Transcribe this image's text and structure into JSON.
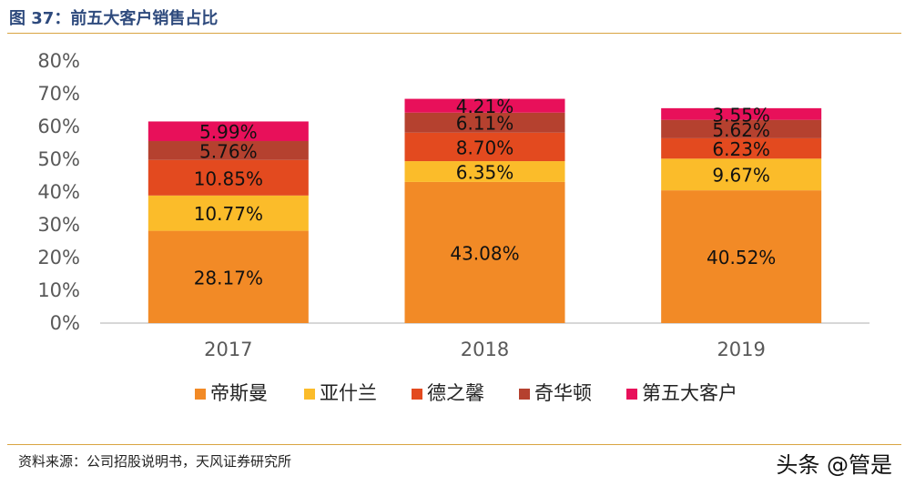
{
  "title": "图 37：前五大客户销售占比",
  "source": "资料来源：公司招股说明书，天风证券研究所",
  "watermark": "头条 @管是",
  "chart_data": {
    "type": "bar",
    "stacked": true,
    "categories": [
      "2017",
      "2018",
      "2019"
    ],
    "ylim": [
      0,
      80
    ],
    "yticks": [
      "0%",
      "10%",
      "20%",
      "30%",
      "40%",
      "50%",
      "60%",
      "70%",
      "80%"
    ],
    "grid": false,
    "legend_position": "bottom",
    "series": [
      {
        "name": "帝斯曼",
        "color": "#f28a26",
        "values": [
          28.17,
          43.08,
          40.52
        ],
        "labels": [
          "28.17%",
          "43.08%",
          "40.52%"
        ]
      },
      {
        "name": "亚什兰",
        "color": "#fbbc2a",
        "values": [
          10.77,
          6.35,
          9.67
        ],
        "labels": [
          "10.77%",
          "6.35%",
          "9.67%"
        ]
      },
      {
        "name": "德之馨",
        "color": "#e34a1f",
        "values": [
          10.85,
          8.7,
          6.23
        ],
        "labels": [
          "10.85%",
          "8.70%",
          "6.23%"
        ]
      },
      {
        "name": "奇华顿",
        "color": "#b5412f",
        "values": [
          5.76,
          6.11,
          5.62
        ],
        "labels": [
          "5.76%",
          "6.11%",
          "5.62%"
        ]
      },
      {
        "name": "第五大客户",
        "color": "#e8105a",
        "values": [
          5.99,
          4.21,
          3.55
        ],
        "labels": [
          "5.99%",
          "4.21%",
          "3.55%"
        ]
      }
    ]
  }
}
